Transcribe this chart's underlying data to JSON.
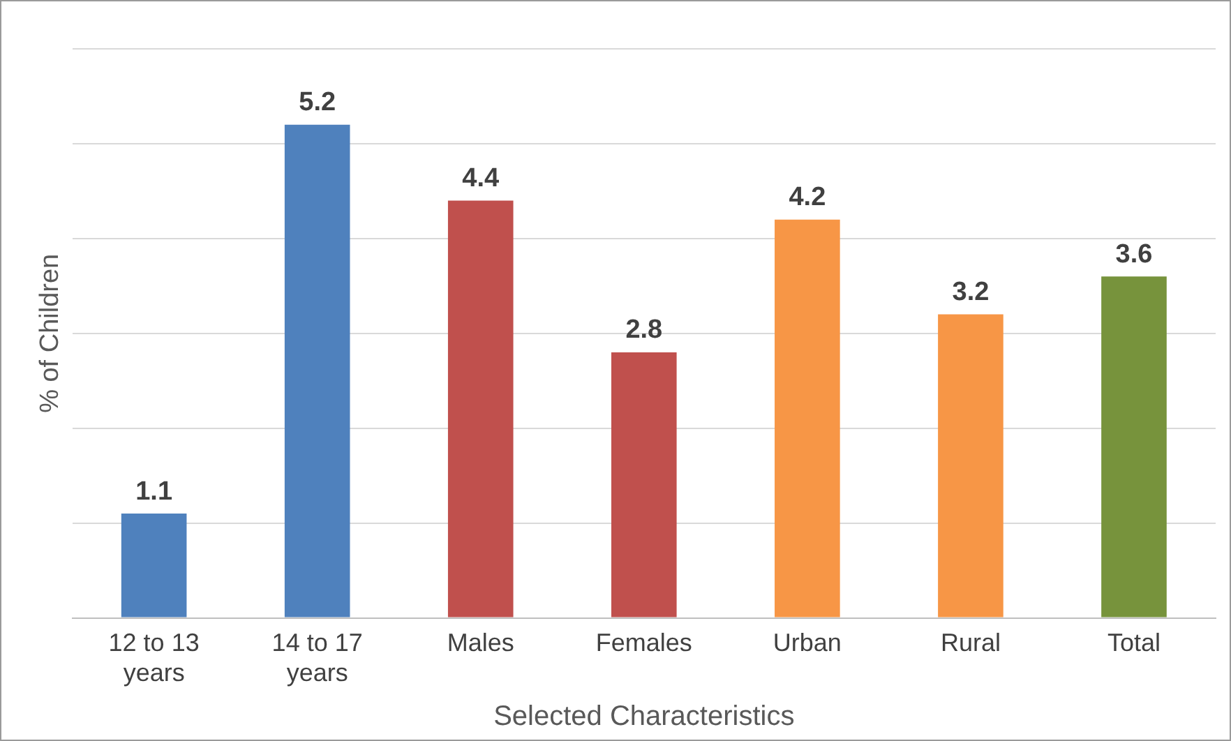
{
  "chart_data": {
    "type": "bar",
    "xlabel": "Selected Characteristics",
    "ylabel": "% of Children",
    "categories": [
      "12 to 13 years",
      "14 to 17 years",
      "Males",
      "Females",
      "Urban",
      "Rural",
      "Total"
    ],
    "values": [
      1.1,
      5.2,
      4.4,
      2.8,
      4.2,
      3.2,
      3.6
    ],
    "colors": [
      "#4f81bd",
      "#4f81bd",
      "#c0504d",
      "#c0504d",
      "#f79646",
      "#f79646",
      "#77933c"
    ],
    "ylim": [
      0,
      6
    ],
    "yticks": [
      {
        "value": 0,
        "label": null
      },
      {
        "value": 1,
        "label": null
      },
      {
        "value": 2,
        "label": null
      },
      {
        "value": 3,
        "label": null
      },
      {
        "value": 4,
        "label": null
      },
      {
        "value": 5,
        "label": null
      },
      {
        "value": 6,
        "label": null
      }
    ],
    "tick_labels": "x",
    "grid": "y",
    "legend": false,
    "data_labels": true
  }
}
